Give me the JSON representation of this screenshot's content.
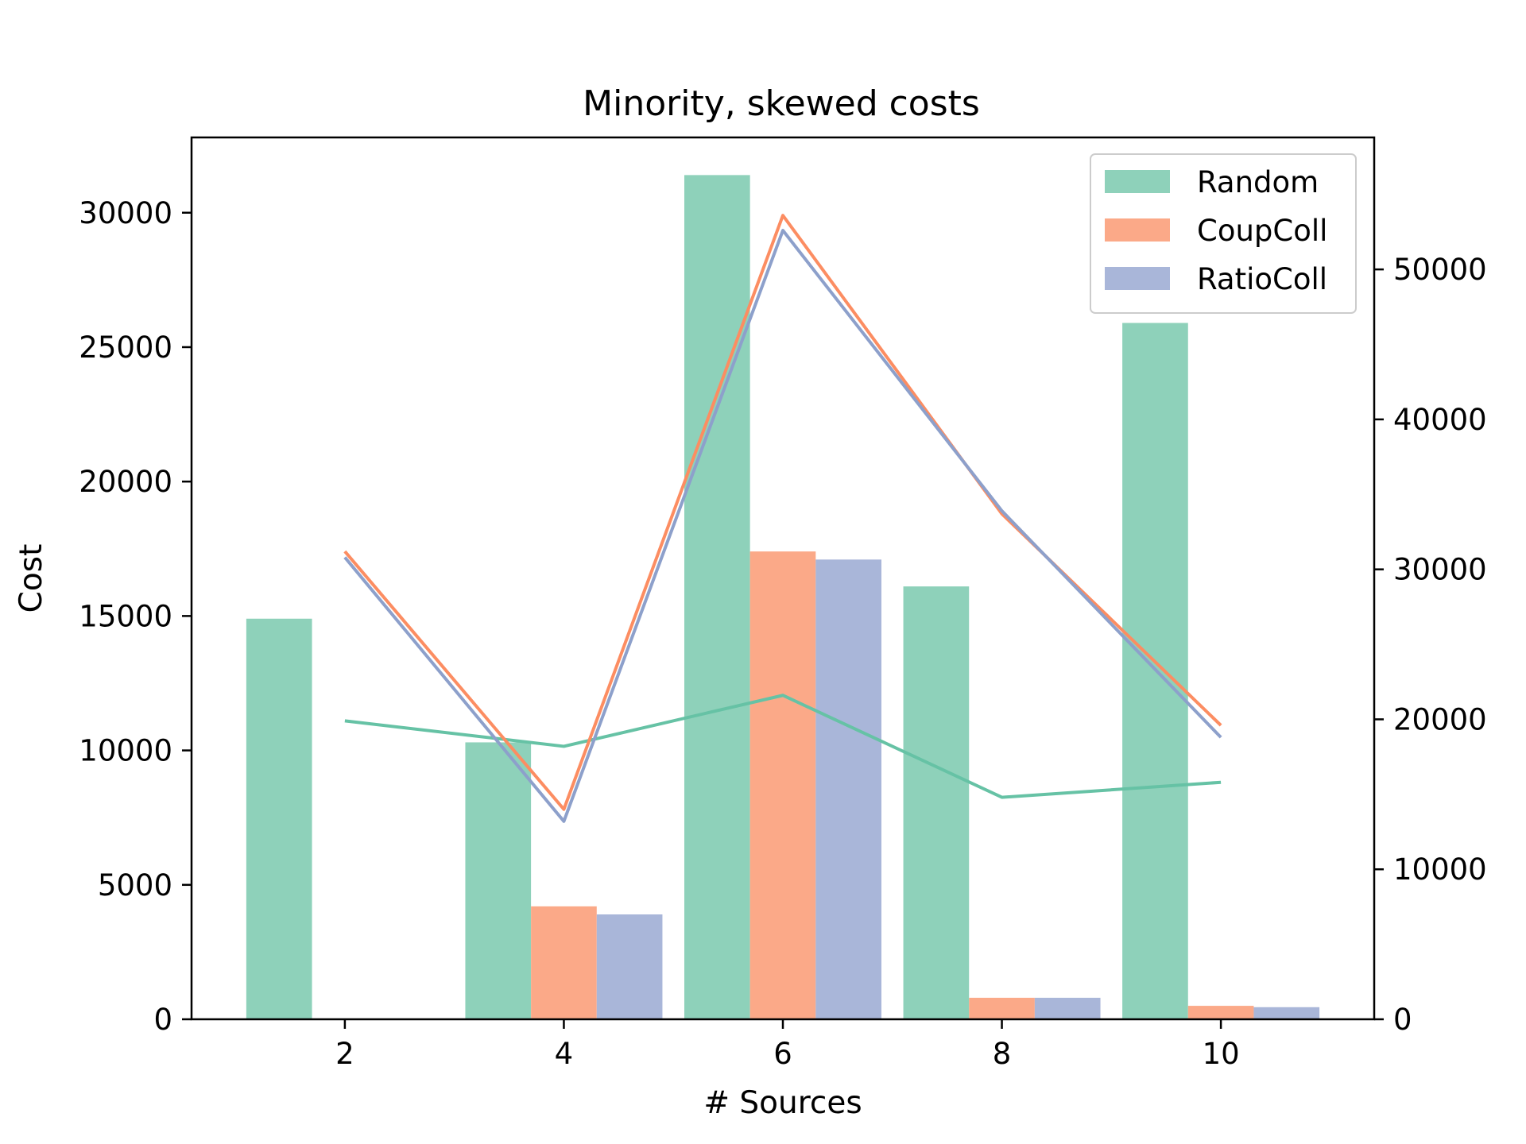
{
  "chart_data": {
    "type": "bar",
    "title": "Minority, skewed costs",
    "xlabel": "# Sources",
    "ylabel": "Cost",
    "x": [
      2,
      4,
      6,
      8,
      10
    ],
    "xticks": [
      "2",
      "4",
      "6",
      "8",
      "10"
    ],
    "xlim": [
      0.6,
      11.4
    ],
    "ylim": [
      0,
      32800
    ],
    "yticks": [
      "0",
      "5000",
      "10000",
      "15000",
      "20000",
      "25000",
      "30000"
    ],
    "y2lim": [
      0,
      58800
    ],
    "y2ticks": [
      "0",
      "10000",
      "20000",
      "30000",
      "40000",
      "50000"
    ],
    "bar_series": [
      {
        "name": "Random",
        "color": "#8ed1ba",
        "values": [
          14900,
          10300,
          31400,
          16100,
          25900
        ]
      },
      {
        "name": "CoupColl",
        "color": "#fba988",
        "values": [
          0,
          4200,
          17400,
          800,
          500
        ]
      },
      {
        "name": "RatioColl",
        "color": "#a9b6d9",
        "values": [
          0,
          3900,
          17100,
          800,
          450
        ]
      }
    ],
    "line_series": [
      {
        "name": "Random",
        "color": "#66c2a5",
        "axis": "right",
        "values": [
          19900,
          18200,
          21600,
          14800,
          15800
        ]
      },
      {
        "name": "CoupColl",
        "color": "#fc8d62",
        "axis": "right",
        "values": [
          31200,
          14000,
          53600,
          33700,
          19600
        ]
      },
      {
        "name": "RatioColl",
        "color": "#8da0cb",
        "axis": "right",
        "values": [
          30800,
          13200,
          52600,
          33900,
          18800
        ]
      }
    ],
    "legend": {
      "position": "top-right",
      "entries": [
        "Random",
        "CoupColl",
        "RatioColl"
      ]
    },
    "grid": false
  }
}
